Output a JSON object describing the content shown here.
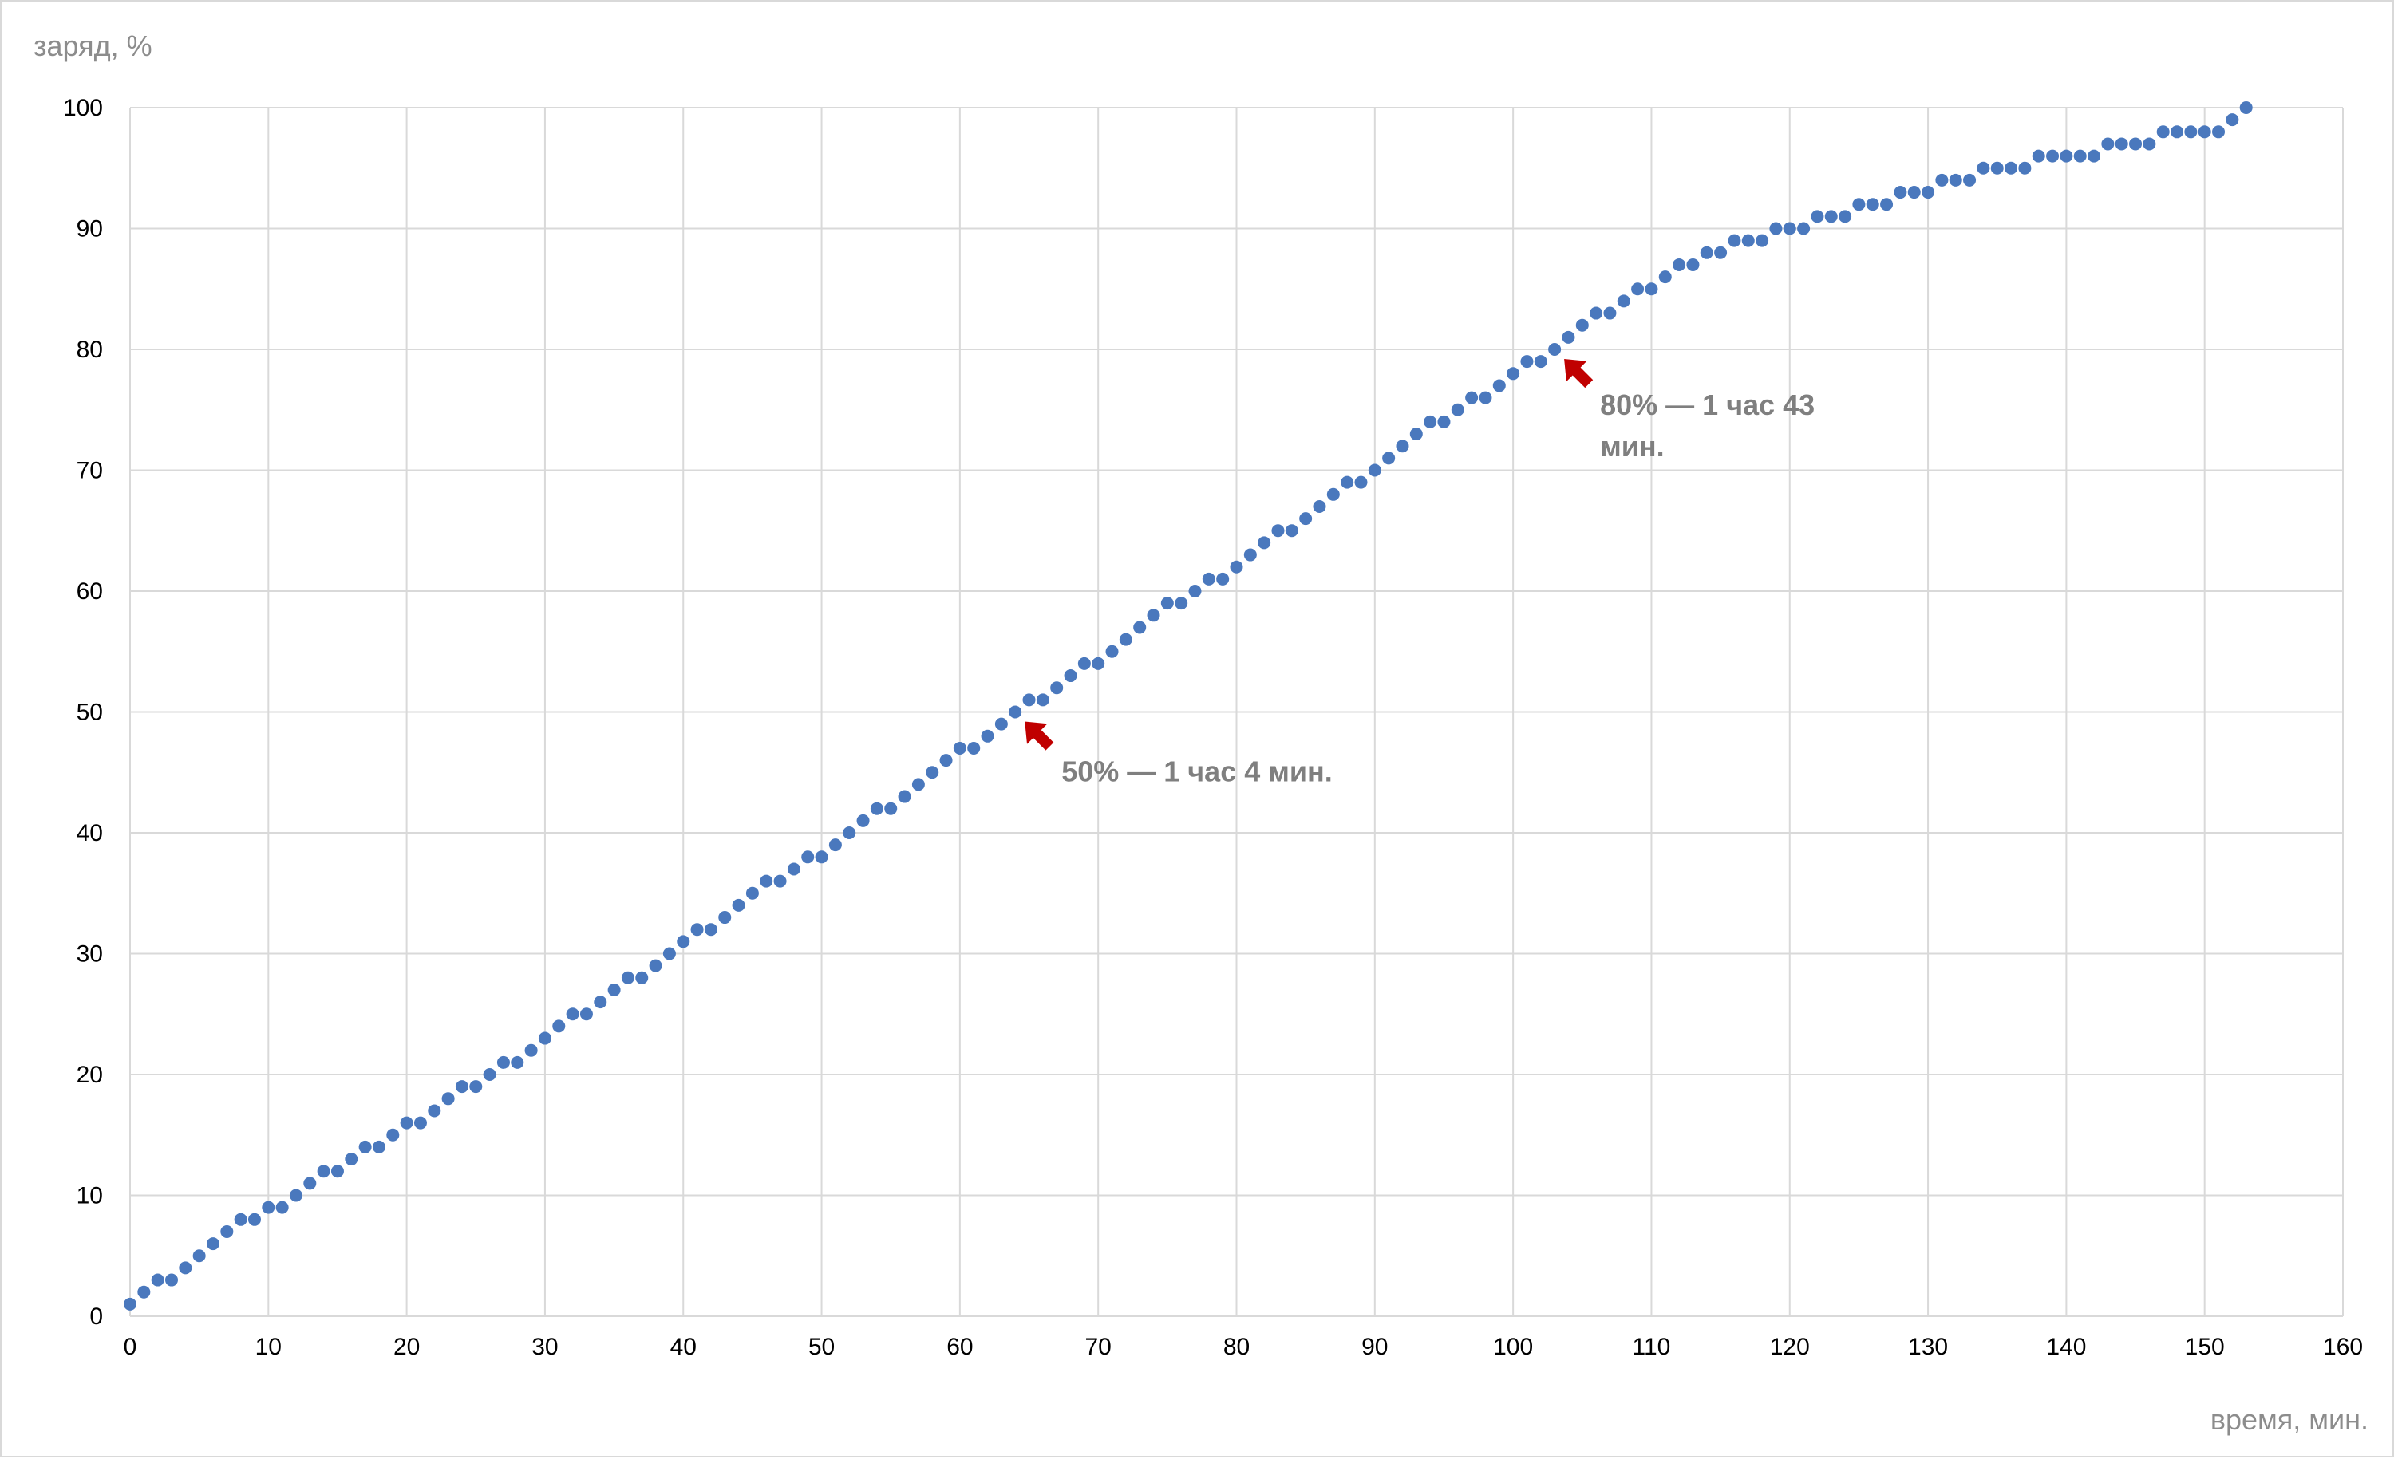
{
  "chart_data": {
    "type": "scatter",
    "title": "",
    "xlabel": "время, мин.",
    "ylabel": "заряд, %",
    "xlim": [
      0,
      160
    ],
    "ylim": [
      0,
      100
    ],
    "xticks": [
      0,
      10,
      20,
      30,
      40,
      50,
      60,
      70,
      80,
      90,
      100,
      110,
      120,
      130,
      140,
      150,
      160
    ],
    "yticks": [
      0,
      10,
      20,
      30,
      40,
      50,
      60,
      70,
      80,
      90,
      100
    ],
    "grid": true,
    "colors": {
      "points": "#4a78bd",
      "arrow": "#c00000",
      "grid": "#d9d9d9",
      "annotation": "#7f7f7f"
    },
    "series": [
      {
        "x": [
          0,
          1,
          2,
          3,
          4,
          5,
          6,
          7,
          8,
          9,
          10,
          11,
          12,
          13,
          14,
          15,
          16,
          17,
          18,
          19,
          20,
          21,
          22,
          23,
          24,
          25,
          26,
          27,
          28,
          29,
          30,
          31,
          32,
          33,
          34,
          35,
          36,
          37,
          38,
          39,
          40,
          41,
          42,
          43,
          44,
          45,
          46,
          47,
          48,
          49,
          50,
          51,
          52,
          53,
          54,
          55,
          56,
          57,
          58,
          59,
          60,
          61,
          62,
          63,
          64,
          65,
          66,
          67,
          68,
          69,
          70,
          71,
          72,
          73,
          74,
          75,
          76,
          77,
          78,
          79,
          80,
          81,
          82,
          83,
          84,
          85,
          86,
          87,
          88,
          89,
          90,
          91,
          92,
          93,
          94,
          95,
          96,
          97,
          98,
          99,
          100,
          101,
          102,
          103,
          104,
          105,
          106,
          107,
          108,
          109,
          110,
          111,
          112,
          113,
          114,
          115,
          116,
          117,
          118,
          119,
          120,
          121,
          122,
          123,
          124,
          125,
          126,
          127,
          128,
          129,
          130,
          131,
          132,
          133,
          134,
          135,
          136,
          137,
          138,
          139,
          140,
          141,
          142,
          143,
          144,
          145,
          146,
          147,
          148,
          149,
          150,
          151,
          152,
          153
        ],
        "y": [
          1,
          2,
          3,
          3,
          4,
          5,
          6,
          7,
          8,
          8,
          9,
          9,
          10,
          11,
          12,
          12,
          13,
          14,
          14,
          15,
          16,
          16,
          17,
          18,
          19,
          19,
          20,
          21,
          21,
          22,
          23,
          24,
          25,
          25,
          26,
          27,
          28,
          28,
          29,
          30,
          31,
          32,
          32,
          33,
          34,
          35,
          36,
          36,
          37,
          38,
          38,
          39,
          40,
          41,
          42,
          42,
          43,
          44,
          45,
          46,
          47,
          47,
          48,
          49,
          50,
          51,
          51,
          52,
          53,
          54,
          54,
          55,
          56,
          57,
          58,
          59,
          59,
          60,
          61,
          61,
          62,
          63,
          64,
          65,
          65,
          66,
          67,
          68,
          69,
          69,
          70,
          71,
          72,
          73,
          74,
          74,
          75,
          76,
          76,
          77,
          78,
          79,
          79,
          80,
          81,
          82,
          83,
          83,
          84,
          85,
          85,
          86,
          87,
          87,
          88,
          88,
          89,
          89,
          89,
          90,
          90,
          90,
          91,
          91,
          91,
          92,
          92,
          92,
          93,
          93,
          93,
          94,
          94,
          94,
          95,
          95,
          95,
          95,
          96,
          96,
          96,
          96,
          96,
          97,
          97,
          97,
          97,
          98,
          98,
          98,
          98,
          98,
          99,
          100
        ]
      }
    ],
    "annotations": [
      {
        "text": "50% — 1 час 4 мин.",
        "x": 64,
        "y": 50
      },
      {
        "text_line1": "80% — 1 час 43",
        "text_line2": "мин.",
        "x": 103,
        "y": 80
      }
    ]
  }
}
